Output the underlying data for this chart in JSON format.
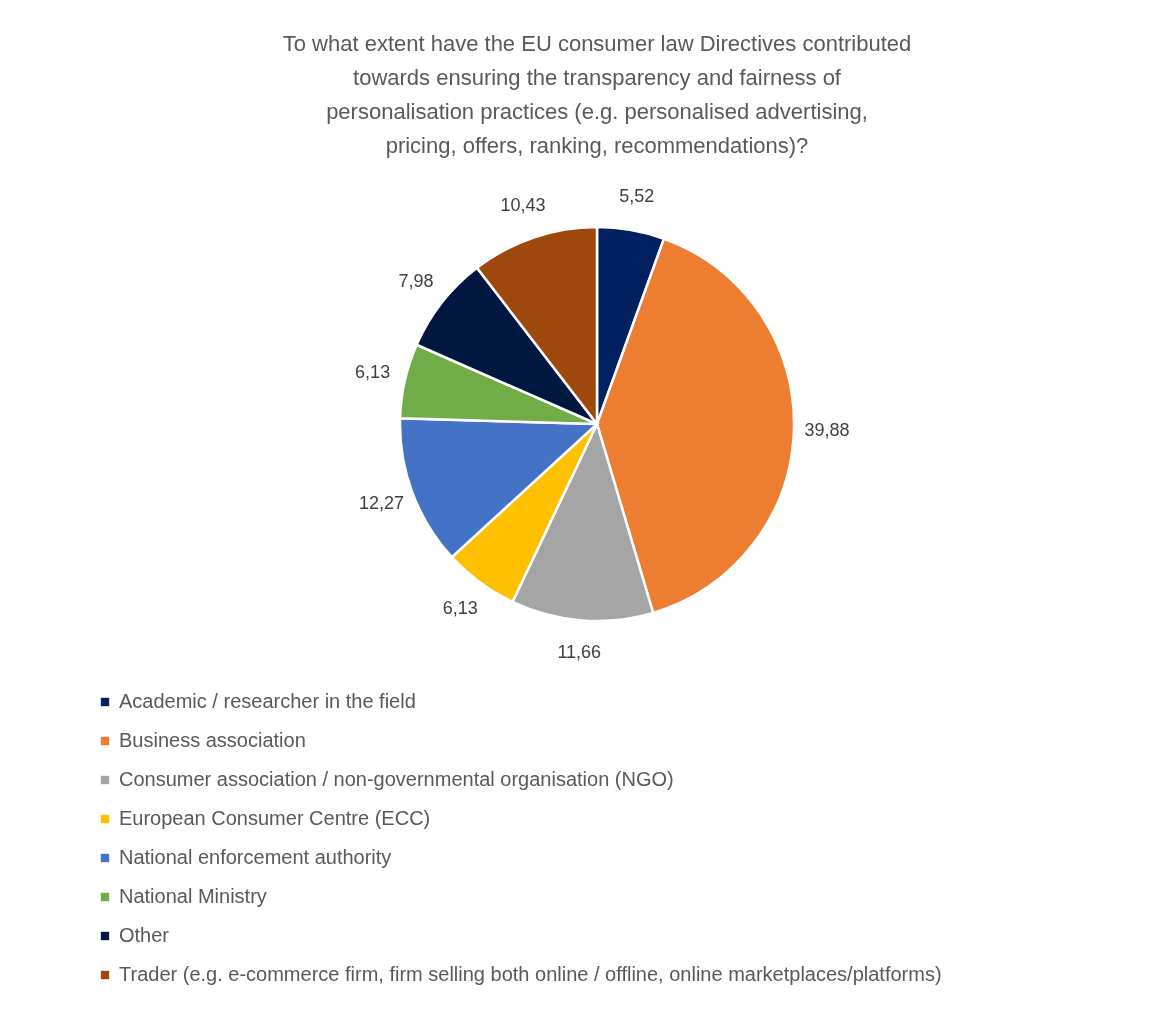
{
  "chart_data": {
    "type": "pie",
    "title": "To what extent have the EU consumer law Directives contributed towards ensuring the transparency and fairness of personalisation practices (e.g. personalised advertising, pricing, offers, ranking, recommendations)?",
    "categories": [
      "Academic / researcher in the field",
      "Business association",
      "Consumer association / non-governmental organisation (NGO)",
      "European Consumer Centre (ECC)",
      "National enforcement authority",
      "National Ministry",
      "Other",
      "Trader (e.g. e-commerce firm, firm selling both online / offline, online marketplaces/platforms)"
    ],
    "values": [
      5.52,
      39.88,
      11.66,
      6.13,
      12.27,
      6.13,
      7.98,
      10.43
    ],
    "value_labels": [
      "5,52",
      "39,88",
      "11,66",
      "6,13",
      "12,27",
      "6,13",
      "7,98",
      "10,43"
    ],
    "colors": [
      "#002060",
      "#ed7d31",
      "#a5a5a5",
      "#ffc000",
      "#4472c4",
      "#70ad47",
      "#00173f",
      "#9e480e"
    ],
    "legend": "bottom"
  }
}
